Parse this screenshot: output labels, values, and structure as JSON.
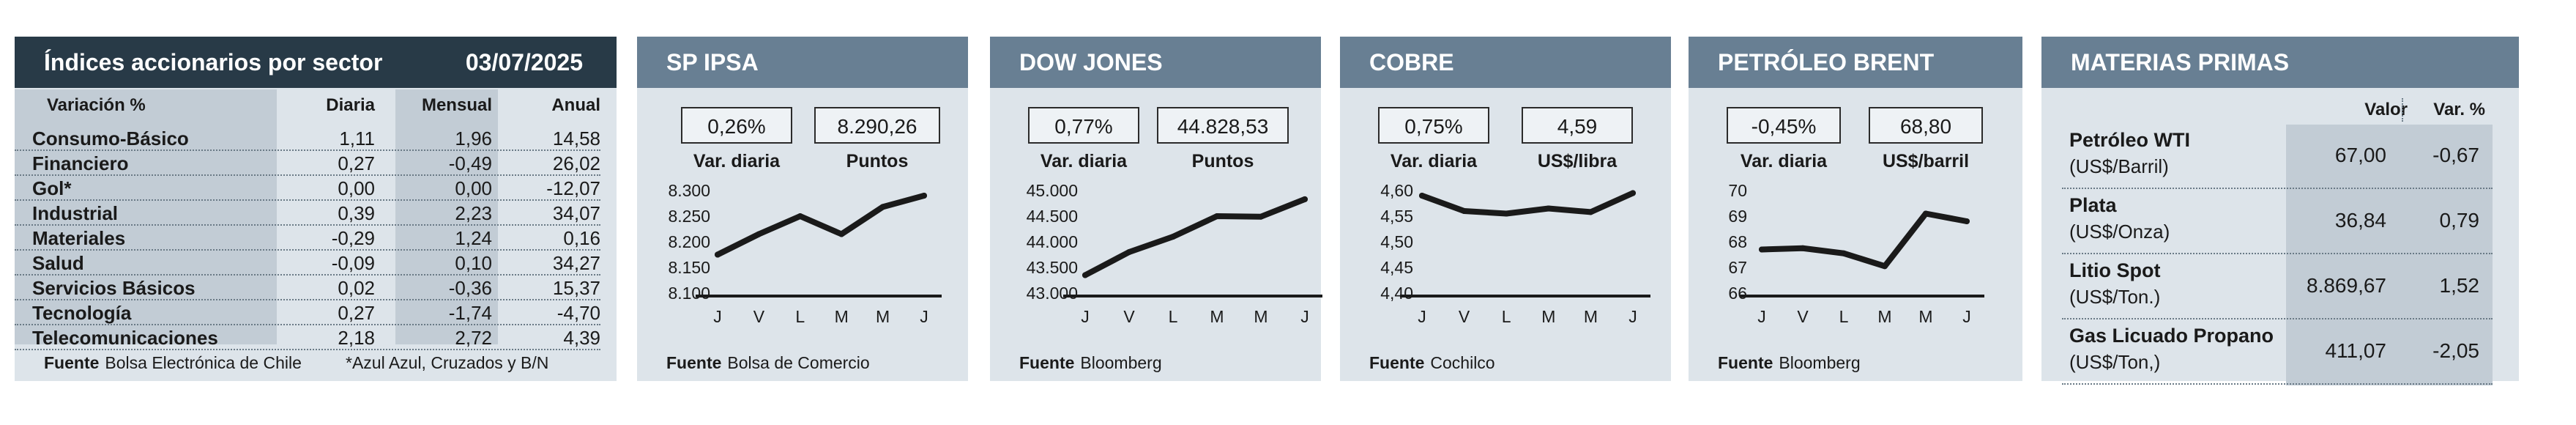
{
  "sector_panel": {
    "title": "Índices accionarios por sector",
    "date": "03/07/2025",
    "columns": [
      "Variación %",
      "Diaria",
      "Mensual",
      "Anual"
    ],
    "rows": [
      {
        "label": "Consumo-Básico",
        "diaria": "1,11",
        "mensual": "1,96",
        "anual": "14,58"
      },
      {
        "label": "Financiero",
        "diaria": "0,27",
        "mensual": "-0,49",
        "anual": "26,02"
      },
      {
        "label": "Gol*",
        "diaria": "0,00",
        "mensual": "0,00",
        "anual": "-12,07"
      },
      {
        "label": "Industrial",
        "diaria": "0,39",
        "mensual": "2,23",
        "anual": "34,07"
      },
      {
        "label": "Materiales",
        "diaria": "-0,29",
        "mensual": "1,24",
        "anual": "0,16"
      },
      {
        "label": "Salud",
        "diaria": "-0,09",
        "mensual": "0,10",
        "anual": "34,27"
      },
      {
        "label": "Servicios Básicos",
        "diaria": "0,02",
        "mensual": "-0,36",
        "anual": "15,37"
      },
      {
        "label": "Tecnología",
        "diaria": "0,27",
        "mensual": "-1,74",
        "anual": "-4,70"
      },
      {
        "label": "Telecomunicaciones",
        "diaria": "2,18",
        "mensual": "2,72",
        "anual": "4,39"
      }
    ],
    "fuente_label": "Fuente",
    "fuente": "Bolsa Electrónica de Chile",
    "note": "*Azul Azul, Cruzados y B/N"
  },
  "panels": [
    {
      "title": "SP IPSA",
      "box1": "0,26%",
      "box2": "8.290,26",
      "label1": "Var. diaria",
      "label2": "Puntos",
      "fuente_label": "Fuente",
      "fuente": "Bolsa de Comercio"
    },
    {
      "title": "DOW JONES",
      "box1": "0,77%",
      "box2": "44.828,53",
      "label1": "Var. diaria",
      "label2": "Puntos",
      "fuente_label": "Fuente",
      "fuente": "Bloomberg"
    },
    {
      "title": "COBRE",
      "box1": "0,75%",
      "box2": "4,59",
      "label1": "Var. diaria",
      "label2": "US$/libra",
      "fuente_label": "Fuente",
      "fuente": "Cochilco"
    },
    {
      "title": "PETRÓLEO BRENT",
      "box1": "-0,45%",
      "box2": "68,80",
      "label1": "Var. diaria",
      "label2": "US$/barril",
      "fuente_label": "Fuente",
      "fuente": "Bloomberg"
    }
  ],
  "materias": {
    "title": "MATERIAS PRIMAS",
    "col_valor": "Valor",
    "col_var": "Var. %",
    "rows": [
      {
        "name": "Petróleo WTI",
        "unit": "(US$/Barril)",
        "valor": "67,00",
        "var": "-0,67"
      },
      {
        "name": "Plata",
        "unit": "(US$/Onza)",
        "valor": "36,84",
        "var": "0,79"
      },
      {
        "name": "Litio Spot",
        "unit": "(US$/Ton.)",
        "valor": "8.869,67",
        "var": "1,52"
      },
      {
        "name": "Gas Licuado Propano",
        "unit": "(US$/Ton,)",
        "valor": "411,07",
        "var": "-2,05"
      }
    ]
  },
  "chart_data": [
    {
      "type": "line",
      "title": "SP IPSA",
      "categories": [
        "J",
        "V",
        "L",
        "M",
        "M",
        "J"
      ],
      "values": [
        8175,
        8215,
        8250,
        8215,
        8268,
        8290
      ],
      "ylim": [
        8100,
        8300
      ],
      "yticks": [
        "8.100",
        "8.150",
        "8.200",
        "8.250",
        "8.300"
      ],
      "grid": false
    },
    {
      "type": "line",
      "title": "DOW JONES",
      "categories": [
        "J",
        "V",
        "L",
        "M",
        "M",
        "J"
      ],
      "values": [
        43350,
        43800,
        44100,
        44500,
        44490,
        44830
      ],
      "ylim": [
        43000,
        45000
      ],
      "yticks": [
        "43.000",
        "43.500",
        "44.000",
        "44.500",
        "45.000"
      ],
      "grid": false
    },
    {
      "type": "line",
      "title": "COBRE",
      "categories": [
        "J",
        "V",
        "L",
        "M",
        "M",
        "J"
      ],
      "values": [
        4.59,
        4.56,
        4.555,
        4.565,
        4.558,
        4.595
      ],
      "ylim": [
        4.4,
        4.6
      ],
      "yticks": [
        "4,40",
        "4,45",
        "4,50",
        "4,55",
        "4,60"
      ],
      "grid": false
    },
    {
      "type": "line",
      "title": "PETRÓLEO BRENT",
      "categories": [
        "J",
        "V",
        "L",
        "M",
        "M",
        "J"
      ],
      "values": [
        67.7,
        67.75,
        67.55,
        67.05,
        69.1,
        68.8
      ],
      "ylim": [
        66,
        70
      ],
      "yticks": [
        "66",
        "67",
        "68",
        "69",
        "70"
      ],
      "grid": false
    }
  ]
}
